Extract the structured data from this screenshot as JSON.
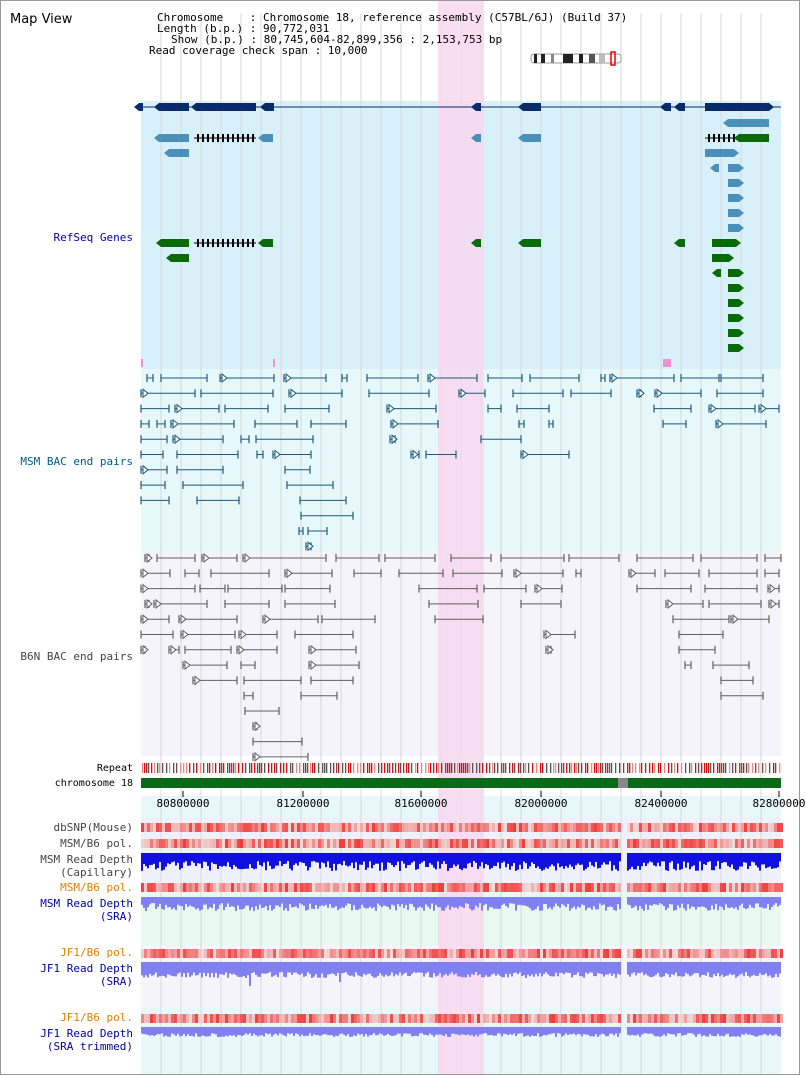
{
  "page_title": "Map View",
  "header": {
    "chromosome_line": "Chromosome    : Chromosome 18, reference assembly (C57BL/6J) (Build 37)",
    "length_line": "Length (b.p.) : 90,772,031",
    "show_line": "Show (b.p.) : 80,745,604-82,899,356 : 2,153,753 bp",
    "span_line": "Read coverage check span : 10,000"
  },
  "tracks": {
    "refseq": "RefSeq Genes",
    "msm_bac": "MSM BAC end pairs",
    "b6n_bac": "B6N BAC end pairs",
    "repeat": "Repeat",
    "chromosome": "chromosome 18",
    "dbsnp": "dbSNP(Mouse)",
    "msm_b6_pol_1": "MSM/B6 pol.",
    "msm_depth_cap_1": "MSM Read Depth",
    "msm_depth_cap_2": "(Capillary)",
    "msm_b6_pol_2": "MSM/B6 pol.",
    "msm_depth_sra_1": "MSM Read Depth",
    "msm_depth_sra_2": "(SRA)",
    "jf1_b6_pol_1": "JF1/B6 pol.",
    "jf1_depth_sra_1": "JF1 Read Depth",
    "jf1_depth_sra_2": "(SRA)",
    "jf1_b6_pol_2": "JF1/B6 pol.",
    "jf1_depth_trim_1": "JF1 Read Depth",
    "jf1_depth_trim_2": "(SRA trimmed)"
  },
  "axis": {
    "ticks": [
      "80800000",
      "81200000",
      "81600000",
      "82000000",
      "82400000",
      "82800000"
    ]
  },
  "colors": {
    "refseq_bg": "#d8f0fa",
    "msm_bg": "#e6f8fa",
    "b6n_bg": "#f4f4fa",
    "highlight": "#f8d8f0",
    "gene_dark": "#0a2a6a",
    "gene_teal": "#4a90b8",
    "gene_green": "#0a6a0a",
    "msm_pair": "#1a5a7a",
    "b6n_pair": "#606060",
    "chrom_green": "#0a6a1a",
    "pol_red": "#e83030",
    "depth_blue": "#1010e0",
    "depth_light": "#8080f0",
    "label_blue": "#0000aa",
    "label_msm": "#005a80",
    "label_orange": "#e08000"
  }
}
